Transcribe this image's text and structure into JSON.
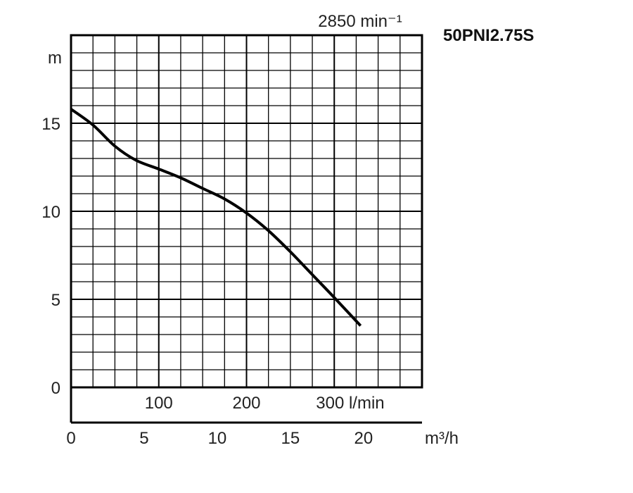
{
  "chart_data": {
    "type": "line",
    "title": "50PNI2.75S",
    "speed_label": "2850 min⁻¹",
    "ylabel": "m",
    "ylim": [
      0,
      20
    ],
    "yticks": [
      "0",
      "5",
      "10",
      "15"
    ],
    "ytick_values": [
      0,
      5,
      10,
      15
    ],
    "xlabel": "l/min",
    "xlim": [
      0,
      400
    ],
    "xticks": [
      "100",
      "200",
      "300 l/min"
    ],
    "xtick_values": [
      100,
      200,
      300
    ],
    "x2label": "m³/h",
    "x2ticks": [
      "0",
      "5",
      "10",
      "15",
      "20"
    ],
    "x2tick_values": [
      0,
      5,
      10,
      15,
      20
    ],
    "grid": true,
    "series": [
      {
        "x": [
          0,
          25,
          50,
          74,
          100,
          125,
          150,
          175,
          200,
          225,
          250,
          275,
          300,
          330
        ],
        "y": [
          15.8,
          14.9,
          13.7,
          12.9,
          12.4,
          11.9,
          11.3,
          10.7,
          9.9,
          8.9,
          7.7,
          6.4,
          5.1,
          3.5
        ]
      }
    ],
    "colors": {
      "curve": "#000000",
      "grid": "#000000"
    }
  }
}
